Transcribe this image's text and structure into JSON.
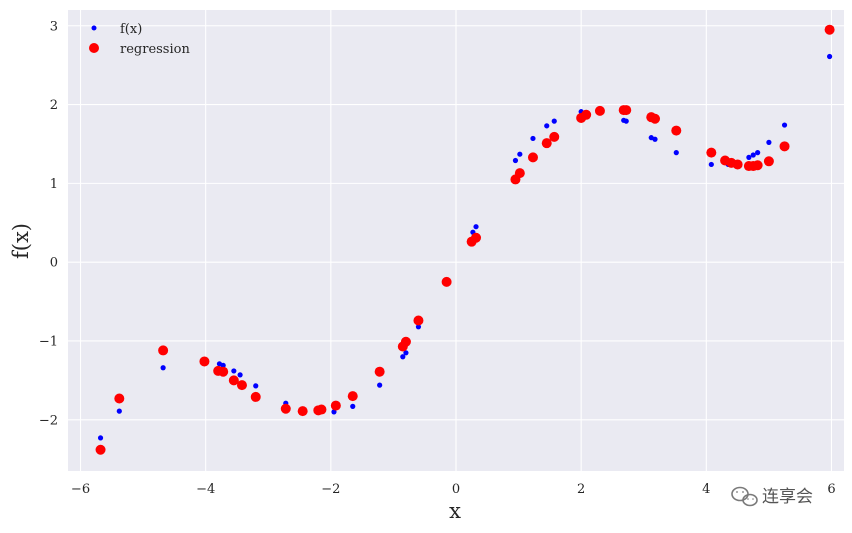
{
  "chart_data": {
    "type": "scatter",
    "xlabel": "x",
    "ylabel": "f(x)",
    "xlim": [
      -6.2,
      6.2
    ],
    "ylim": [
      -2.65,
      3.2
    ],
    "xticks": [
      -6,
      -4,
      -2,
      0,
      2,
      4,
      6
    ],
    "yticks": [
      -2,
      -1,
      0,
      1,
      2,
      3
    ],
    "xtick_labels": [
      "−6",
      "−4",
      "−2",
      "0",
      "2",
      "4",
      "6"
    ],
    "ytick_labels": [
      "−2",
      "−1",
      "0",
      "1",
      "2",
      "3"
    ],
    "grid": true,
    "legend_placement": "top-left",
    "series": [
      {
        "name": "f(x)",
        "color": "#0000ff",
        "marker": "small-dot",
        "points": [
          [
            -5.68,
            -2.23
          ],
          [
            -5.38,
            -1.89
          ],
          [
            -4.68,
            -1.34
          ],
          [
            -3.78,
            -1.29
          ],
          [
            -3.72,
            -1.31
          ],
          [
            -3.55,
            -1.38
          ],
          [
            -3.45,
            -1.43
          ],
          [
            -3.2,
            -1.57
          ],
          [
            -2.72,
            -1.79
          ],
          [
            -2.15,
            -1.89
          ],
          [
            -1.95,
            -1.9
          ],
          [
            -1.65,
            -1.83
          ],
          [
            -1.22,
            -1.56
          ],
          [
            -0.85,
            -1.2
          ],
          [
            -0.8,
            -1.15
          ],
          [
            -0.6,
            -0.82
          ],
          [
            0.27,
            0.38
          ],
          [
            0.32,
            0.45
          ],
          [
            0.95,
            1.29
          ],
          [
            1.02,
            1.37
          ],
          [
            1.23,
            1.57
          ],
          [
            1.45,
            1.73
          ],
          [
            1.57,
            1.79
          ],
          [
            2.0,
            1.91
          ],
          [
            2.08,
            1.9
          ],
          [
            2.68,
            1.8
          ],
          [
            2.72,
            1.79
          ],
          [
            3.12,
            1.58
          ],
          [
            3.18,
            1.56
          ],
          [
            3.52,
            1.39
          ],
          [
            4.08,
            1.24
          ],
          [
            4.35,
            1.24
          ],
          [
            4.45,
            1.25
          ],
          [
            4.68,
            1.33
          ],
          [
            4.75,
            1.36
          ],
          [
            4.82,
            1.39
          ],
          [
            5.0,
            1.52
          ],
          [
            5.25,
            1.74
          ],
          [
            5.97,
            2.61
          ]
        ]
      },
      {
        "name": "regression",
        "color": "#ff0000",
        "marker": "circle",
        "points": [
          [
            -5.68,
            -2.38
          ],
          [
            -5.38,
            -1.73
          ],
          [
            -4.68,
            -1.12
          ],
          [
            -4.02,
            -1.26
          ],
          [
            -3.8,
            -1.38
          ],
          [
            -3.72,
            -1.39
          ],
          [
            -3.55,
            -1.5
          ],
          [
            -3.42,
            -1.56
          ],
          [
            -3.2,
            -1.71
          ],
          [
            -2.72,
            -1.86
          ],
          [
            -2.45,
            -1.89
          ],
          [
            -2.2,
            -1.88
          ],
          [
            -2.15,
            -1.87
          ],
          [
            -1.92,
            -1.82
          ],
          [
            -1.65,
            -1.7
          ],
          [
            -1.22,
            -1.39
          ],
          [
            -0.85,
            -1.07
          ],
          [
            -0.8,
            -1.01
          ],
          [
            -0.6,
            -0.74
          ],
          [
            -0.15,
            -0.25
          ],
          [
            0.25,
            0.26
          ],
          [
            0.32,
            0.31
          ],
          [
            0.95,
            1.05
          ],
          [
            1.02,
            1.13
          ],
          [
            1.23,
            1.33
          ],
          [
            1.45,
            1.51
          ],
          [
            1.57,
            1.59
          ],
          [
            2.0,
            1.83
          ],
          [
            2.08,
            1.87
          ],
          [
            2.3,
            1.92
          ],
          [
            2.68,
            1.93
          ],
          [
            2.72,
            1.93
          ],
          [
            3.12,
            1.84
          ],
          [
            3.18,
            1.82
          ],
          [
            3.52,
            1.67
          ],
          [
            4.08,
            1.39
          ],
          [
            4.3,
            1.29
          ],
          [
            4.4,
            1.26
          ],
          [
            4.5,
            1.24
          ],
          [
            4.68,
            1.22
          ],
          [
            4.75,
            1.22
          ],
          [
            4.82,
            1.23
          ],
          [
            5.0,
            1.28
          ],
          [
            5.25,
            1.47
          ],
          [
            5.97,
            2.95
          ]
        ]
      }
    ]
  },
  "watermark": {
    "text": "连享会",
    "icon": "wechat-icon"
  }
}
